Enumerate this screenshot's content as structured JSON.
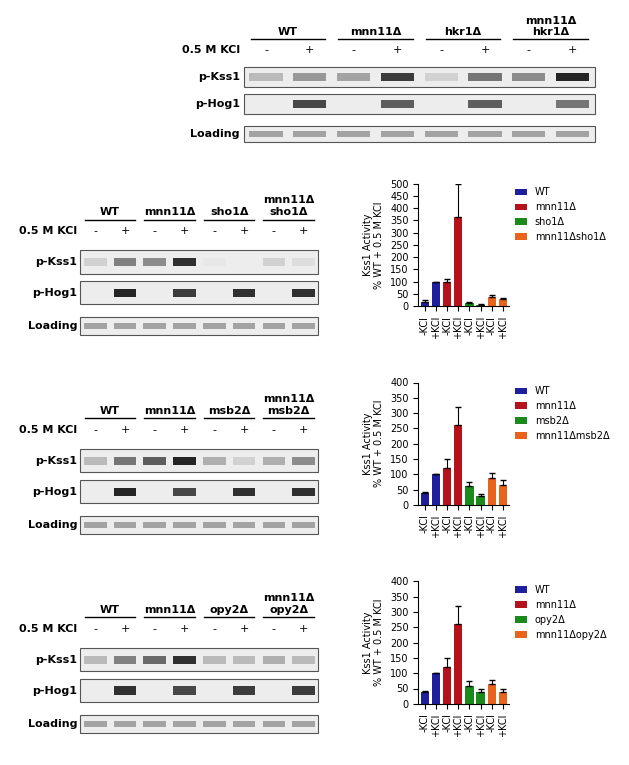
{
  "blots": [
    {
      "groups": [
        "WT",
        "mnn11Δ",
        "hkr1Δ",
        "mnn11Δ\nhkr1Δ"
      ],
      "treatment_label": "0.5 M KCl",
      "treatment": [
        "-",
        "+",
        "-",
        "+",
        "-",
        "+",
        "-",
        "+"
      ],
      "rows": [
        {
          "name": "p-Kss1",
          "intensity": [
            0.3,
            0.45,
            0.4,
            0.85,
            0.2,
            0.6,
            0.5,
            0.95
          ]
        },
        {
          "name": "p-Hog1",
          "intensity": [
            0,
            0.8,
            0,
            0.7,
            0,
            0.7,
            0,
            0.6
          ]
        },
        {
          "name": "Loading",
          "intensity": [
            0.4,
            0.4,
            0.4,
            0.4,
            0.4,
            0.4,
            0.4,
            0.4
          ]
        }
      ]
    },
    {
      "groups": [
        "WT",
        "mnn11Δ",
        "sho1Δ",
        "mnn11Δ\nsho1Δ"
      ],
      "treatment_label": "0.5 M KCl",
      "treatment": [
        "-",
        "+",
        "-",
        "+",
        "-",
        "+",
        "-",
        "+"
      ],
      "rows": [
        {
          "name": "p-Kss1",
          "intensity": [
            0.2,
            0.55,
            0.5,
            0.9,
            0.1,
            0.08,
            0.2,
            0.15
          ]
        },
        {
          "name": "p-Hog1",
          "intensity": [
            0,
            0.95,
            0,
            0.85,
            0,
            0.9,
            0,
            0.9
          ]
        },
        {
          "name": "Loading",
          "intensity": [
            0.4,
            0.4,
            0.4,
            0.4,
            0.4,
            0.4,
            0.4,
            0.4
          ]
        }
      ]
    },
    {
      "groups": [
        "WT",
        "mnn11Δ",
        "msb2Δ",
        "mnn11Δ\nmsb2Δ"
      ],
      "treatment_label": "0.5 M KCl",
      "treatment": [
        "-",
        "+",
        "-",
        "+",
        "-",
        "+",
        "-",
        "+"
      ],
      "rows": [
        {
          "name": "p-Kss1",
          "intensity": [
            0.3,
            0.6,
            0.7,
            0.95,
            0.35,
            0.2,
            0.35,
            0.5
          ]
        },
        {
          "name": "p-Hog1",
          "intensity": [
            0,
            0.95,
            0,
            0.8,
            0,
            0.9,
            0,
            0.9
          ]
        },
        {
          "name": "Loading",
          "intensity": [
            0.4,
            0.4,
            0.4,
            0.4,
            0.4,
            0.4,
            0.4,
            0.4
          ]
        }
      ]
    },
    {
      "groups": [
        "WT",
        "mnn11Δ",
        "opy2Δ",
        "mnn11Δ\nopy2Δ"
      ],
      "treatment_label": "0.5 M KCl",
      "treatment": [
        "-",
        "+",
        "-",
        "+",
        "-",
        "+",
        "-",
        "+"
      ],
      "rows": [
        {
          "name": "p-Kss1",
          "intensity": [
            0.3,
            0.55,
            0.65,
            0.9,
            0.3,
            0.3,
            0.35,
            0.3
          ]
        },
        {
          "name": "p-Hog1",
          "intensity": [
            0,
            0.9,
            0,
            0.8,
            0,
            0.85,
            0,
            0.85
          ]
        },
        {
          "name": "Loading",
          "intensity": [
            0.4,
            0.4,
            0.4,
            0.4,
            0.4,
            0.4,
            0.4,
            0.4
          ]
        }
      ]
    }
  ],
  "chart_data": [
    {
      "type": "bar",
      "y_label": "Kss1 Activity\n% WT + 0.5 M KCl",
      "categories": [
        "-KCl",
        "+KCl",
        "-KCl",
        "+KCl",
        "-KCl",
        "+KCl",
        "-KCl",
        "+KCl"
      ],
      "ylim": [
        0,
        500
      ],
      "yticks": [
        0,
        50,
        100,
        150,
        200,
        250,
        300,
        350,
        400,
        450,
        500
      ],
      "legend": "upper left",
      "series": [
        {
          "name": "WT",
          "color": "#1f1f9e",
          "values": [
            15,
            100,
            null,
            null,
            null,
            null,
            null,
            null
          ],
          "errors": [
            8,
            null,
            null,
            null,
            null,
            null,
            null,
            null
          ]
        },
        {
          "name": "mnn11Δ",
          "color": "#b5121b",
          "values": [
            null,
            null,
            97,
            365,
            null,
            null,
            null,
            null
          ],
          "errors": [
            null,
            null,
            15,
            135,
            null,
            null,
            null,
            null
          ]
        },
        {
          "name": "sho1Δ",
          "color": "#1a8a1a",
          "values": [
            null,
            null,
            null,
            null,
            12,
            5,
            null,
            null
          ],
          "errors": [
            null,
            null,
            null,
            null,
            5,
            2,
            null,
            null
          ]
        },
        {
          "name": "mnn11Δsho1Δ",
          "color": "#e8641c",
          "values": [
            null,
            null,
            null,
            null,
            null,
            null,
            35,
            28
          ],
          "errors": [
            null,
            null,
            null,
            null,
            null,
            null,
            8,
            3
          ]
        }
      ]
    },
    {
      "type": "bar",
      "y_label": "Kss1 Activity\n% WT + 0.5 M KCl",
      "categories": [
        "-KCl",
        "+KCl",
        "-KCl",
        "+KCl",
        "-KCl",
        "+KCl",
        "-KCl",
        "+KCl"
      ],
      "ylim": [
        0,
        400
      ],
      "yticks": [
        0,
        50,
        100,
        150,
        200,
        250,
        300,
        350,
        400
      ],
      "legend": "upper left",
      "series": [
        {
          "name": "WT",
          "color": "#1f1f9e",
          "values": [
            38,
            100,
            null,
            null,
            null,
            null,
            null,
            null
          ],
          "errors": [
            3,
            null,
            null,
            null,
            null,
            null,
            null,
            null
          ]
        },
        {
          "name": "mnn11Δ",
          "color": "#b5121b",
          "values": [
            null,
            null,
            120,
            260,
            null,
            null,
            null,
            null
          ],
          "errors": [
            null,
            null,
            30,
            60,
            null,
            null,
            null,
            null
          ]
        },
        {
          "name": "msb2Δ",
          "color": "#1a8a1a",
          "values": [
            null,
            null,
            null,
            null,
            62,
            30,
            null,
            null
          ],
          "errors": [
            null,
            null,
            null,
            null,
            12,
            5,
            null,
            null
          ]
        },
        {
          "name": "mnn11Δmsb2Δ",
          "color": "#e8641c",
          "values": [
            null,
            null,
            null,
            null,
            null,
            null,
            88,
            65
          ],
          "errors": [
            null,
            null,
            null,
            null,
            null,
            null,
            15,
            15
          ]
        }
      ]
    },
    {
      "type": "bar",
      "y_label": "Kss1 Activity\n% WT + 0.5 M KCl",
      "categories": [
        "-KCl",
        "+KCl",
        "-KCl",
        "+KCl",
        "-KCl",
        "+KCl",
        "-KCl",
        "+KCl"
      ],
      "ylim": [
        0,
        400
      ],
      "yticks": [
        0,
        50,
        100,
        150,
        200,
        250,
        300,
        350,
        400
      ],
      "legend": "upper left",
      "series": [
        {
          "name": "WT",
          "color": "#1f1f9e",
          "values": [
            38,
            100,
            null,
            null,
            null,
            null,
            null,
            null
          ],
          "errors": [
            3,
            null,
            null,
            null,
            null,
            null,
            null,
            null
          ]
        },
        {
          "name": "mnn11Δ",
          "color": "#b5121b",
          "values": [
            null,
            null,
            120,
            260,
            null,
            null,
            null,
            null
          ],
          "errors": [
            null,
            null,
            30,
            60,
            null,
            null,
            null,
            null
          ]
        },
        {
          "name": "opy2Δ",
          "color": "#1a8a1a",
          "values": [
            null,
            null,
            null,
            null,
            58,
            38,
            null,
            null
          ],
          "errors": [
            null,
            null,
            null,
            null,
            15,
            10,
            null,
            null
          ]
        },
        {
          "name": "mnn11Δopy2Δ",
          "color": "#e8641c",
          "values": [
            null,
            null,
            null,
            null,
            null,
            null,
            65,
            40
          ],
          "errors": [
            null,
            null,
            null,
            null,
            null,
            null,
            12,
            10
          ]
        }
      ]
    }
  ]
}
